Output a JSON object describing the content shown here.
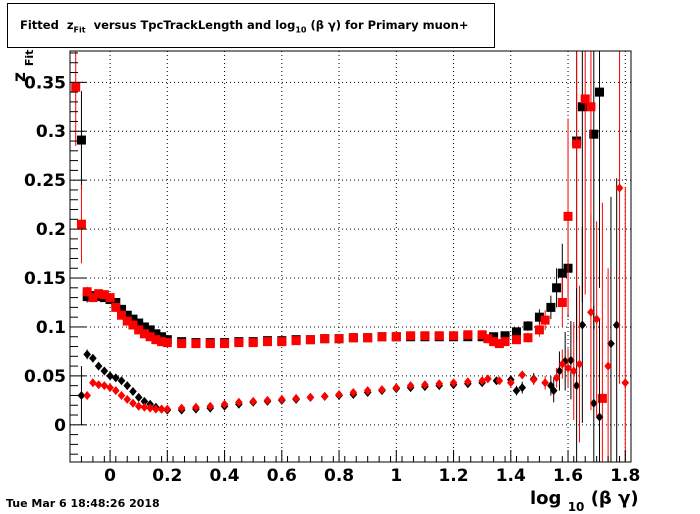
{
  "title": {
    "prefix": "Fitted",
    "z": "z",
    "z_sub": "Fit",
    "middle": "versus TpcTrackLength and log",
    "log_sub": "10",
    "suffix": "(β γ) for Primary muon+"
  },
  "timestamp": "Tue Mar  6 18:48:26 2018",
  "chart_data": {
    "type": "scatter",
    "title": "Fitted  zFit versus TpcTrackLength and log10 (β γ) for Primary muon+",
    "xlabel": {
      "main": "log",
      "sub": "10",
      "rest": "(β γ)"
    },
    "ylabel": {
      "main": "z",
      "sub": "Fit"
    },
    "xlim": [
      -0.14,
      1.82
    ],
    "ylim": [
      -0.038,
      0.382
    ],
    "grid": true,
    "x_ticks": [
      0,
      0.2,
      0.4,
      0.6,
      0.8,
      1,
      1.2,
      1.4,
      1.6,
      1.8
    ],
    "x_tick_labels": [
      "0",
      "0.2",
      "0.4",
      "0.6",
      "0.8",
      "1",
      "1.2",
      "1.4",
      "1.6",
      "1.8"
    ],
    "y_ticks": [
      0,
      0.05,
      0.1,
      0.15,
      0.2,
      0.25,
      0.3,
      0.35
    ],
    "y_tick_labels": [
      "0",
      "0.05",
      "0.1",
      "0.15",
      "0.2",
      "0.25",
      "0.3",
      "0.35"
    ],
    "series": [
      {
        "color": "#000000",
        "marker": "square",
        "points": [
          [
            -0.1,
            0.291,
            0.05
          ],
          [
            -0.08,
            0.131,
            0.006
          ],
          [
            -0.06,
            0.132,
            0.004
          ],
          [
            -0.04,
            0.131,
            0.004
          ],
          [
            -0.02,
            0.13,
            0.003
          ],
          [
            0.0,
            0.128,
            0.003
          ],
          [
            0.02,
            0.125,
            0.003
          ],
          [
            0.04,
            0.118,
            0.002
          ],
          [
            0.06,
            0.112,
            0.002
          ],
          [
            0.08,
            0.108,
            0.002
          ],
          [
            0.1,
            0.104,
            0.002
          ],
          [
            0.12,
            0.1,
            0.002
          ],
          [
            0.14,
            0.097,
            0.002
          ],
          [
            0.16,
            0.093,
            0.001
          ],
          [
            0.18,
            0.09,
            0.001
          ],
          [
            0.2,
            0.087,
            0.001
          ],
          [
            0.25,
            0.085,
            0.001
          ],
          [
            0.3,
            0.084,
            0.001
          ],
          [
            0.35,
            0.084,
            0.001
          ],
          [
            0.4,
            0.084,
            0.001
          ],
          [
            0.45,
            0.085,
            0.001
          ],
          [
            0.5,
            0.085,
            0.001
          ],
          [
            0.55,
            0.086,
            0.001
          ],
          [
            0.6,
            0.086,
            0.001
          ],
          [
            0.65,
            0.087,
            0.001
          ],
          [
            0.7,
            0.087,
            0.001
          ],
          [
            0.75,
            0.088,
            0.001
          ],
          [
            0.8,
            0.088,
            0.001
          ],
          [
            0.85,
            0.089,
            0.001
          ],
          [
            0.9,
            0.089,
            0.001
          ],
          [
            0.95,
            0.09,
            0.001
          ],
          [
            1.0,
            0.09,
            0.001
          ],
          [
            1.05,
            0.09,
            0.001
          ],
          [
            1.1,
            0.09,
            0.001
          ],
          [
            1.15,
            0.09,
            0.001
          ],
          [
            1.2,
            0.09,
            0.001
          ],
          [
            1.25,
            0.09,
            0.001
          ],
          [
            1.3,
            0.09,
            0.002
          ],
          [
            1.34,
            0.09,
            0.002
          ],
          [
            1.38,
            0.091,
            0.003
          ],
          [
            1.42,
            0.095,
            0.004
          ],
          [
            1.46,
            0.101,
            0.005
          ],
          [
            1.5,
            0.11,
            0.008
          ],
          [
            1.54,
            0.12,
            0.012
          ],
          [
            1.56,
            0.14,
            0.02
          ],
          [
            1.58,
            0.155,
            0.03
          ],
          [
            1.6,
            0.16,
            0.05
          ],
          [
            1.63,
            0.29,
            0.15
          ],
          [
            1.65,
            0.325,
            0.2
          ],
          [
            1.69,
            0.297,
            0.2
          ],
          [
            1.71,
            0.34,
            0.2
          ]
        ]
      },
      {
        "color": "#ff0000",
        "marker": "square",
        "points": [
          [
            -0.12,
            0.345,
            0.06
          ],
          [
            -0.1,
            0.205,
            0.04
          ],
          [
            -0.08,
            0.136,
            0.005
          ],
          [
            -0.06,
            0.13,
            0.004
          ],
          [
            -0.04,
            0.134,
            0.004
          ],
          [
            -0.02,
            0.133,
            0.003
          ],
          [
            0.0,
            0.13,
            0.003
          ],
          [
            0.02,
            0.12,
            0.003
          ],
          [
            0.04,
            0.112,
            0.002
          ],
          [
            0.06,
            0.106,
            0.002
          ],
          [
            0.08,
            0.102,
            0.002
          ],
          [
            0.1,
            0.097,
            0.002
          ],
          [
            0.12,
            0.093,
            0.002
          ],
          [
            0.14,
            0.09,
            0.001
          ],
          [
            0.16,
            0.087,
            0.001
          ],
          [
            0.18,
            0.085,
            0.001
          ],
          [
            0.2,
            0.084,
            0.001
          ],
          [
            0.25,
            0.083,
            0.001
          ],
          [
            0.3,
            0.083,
            0.001
          ],
          [
            0.35,
            0.083,
            0.001
          ],
          [
            0.4,
            0.083,
            0.001
          ],
          [
            0.45,
            0.084,
            0.001
          ],
          [
            0.5,
            0.084,
            0.001
          ],
          [
            0.55,
            0.085,
            0.001
          ],
          [
            0.6,
            0.085,
            0.001
          ],
          [
            0.65,
            0.086,
            0.001
          ],
          [
            0.7,
            0.087,
            0.001
          ],
          [
            0.75,
            0.088,
            0.001
          ],
          [
            0.8,
            0.088,
            0.001
          ],
          [
            0.85,
            0.089,
            0.001
          ],
          [
            0.9,
            0.089,
            0.001
          ],
          [
            0.95,
            0.09,
            0.001
          ],
          [
            1.0,
            0.09,
            0.001
          ],
          [
            1.05,
            0.091,
            0.001
          ],
          [
            1.1,
            0.091,
            0.001
          ],
          [
            1.15,
            0.091,
            0.001
          ],
          [
            1.2,
            0.091,
            0.001
          ],
          [
            1.25,
            0.092,
            0.001
          ],
          [
            1.3,
            0.092,
            0.002
          ],
          [
            1.32,
            0.088,
            0.002
          ],
          [
            1.34,
            0.085,
            0.002
          ],
          [
            1.36,
            0.083,
            0.003
          ],
          [
            1.38,
            0.085,
            0.003
          ],
          [
            1.42,
            0.087,
            0.004
          ],
          [
            1.46,
            0.089,
            0.005
          ],
          [
            1.5,
            0.097,
            0.007
          ],
          [
            1.52,
            0.107,
            0.01
          ],
          [
            1.58,
            0.125,
            0.025
          ],
          [
            1.6,
            0.213,
            0.1
          ],
          [
            1.63,
            0.287,
            0.2
          ],
          [
            1.66,
            0.333,
            0.2
          ],
          [
            1.68,
            0.325,
            0.2
          ],
          [
            1.72,
            0.027,
            0.2
          ]
        ]
      },
      {
        "color": "#000000",
        "marker": "diamond",
        "points": [
          [
            -0.1,
            0.03,
            0.03
          ],
          [
            -0.08,
            0.072,
            0.005
          ],
          [
            -0.06,
            0.068,
            0.004
          ],
          [
            -0.04,
            0.06,
            0.003
          ],
          [
            -0.02,
            0.055,
            0.003
          ],
          [
            0.0,
            0.05,
            0.003
          ],
          [
            0.02,
            0.048,
            0.002
          ],
          [
            0.04,
            0.045,
            0.002
          ],
          [
            0.06,
            0.04,
            0.002
          ],
          [
            0.08,
            0.034,
            0.002
          ],
          [
            0.1,
            0.028,
            0.002
          ],
          [
            0.12,
            0.024,
            0.001
          ],
          [
            0.14,
            0.021,
            0.001
          ],
          [
            0.16,
            0.018,
            0.001
          ],
          [
            0.18,
            0.016,
            0.001
          ],
          [
            0.2,
            0.015,
            0.001
          ],
          [
            0.25,
            0.015,
            0.001
          ],
          [
            0.3,
            0.016,
            0.001
          ],
          [
            0.35,
            0.017,
            0.001
          ],
          [
            0.4,
            0.019,
            0.001
          ],
          [
            0.45,
            0.021,
            0.001
          ],
          [
            0.5,
            0.023,
            0.001
          ],
          [
            0.55,
            0.024,
            0.001
          ],
          [
            0.6,
            0.025,
            0.001
          ],
          [
            0.65,
            0.026,
            0.001
          ],
          [
            0.7,
            0.028,
            0.001
          ],
          [
            0.75,
            0.029,
            0.001
          ],
          [
            0.8,
            0.03,
            0.001
          ],
          [
            0.85,
            0.031,
            0.001
          ],
          [
            0.9,
            0.033,
            0.001
          ],
          [
            0.95,
            0.035,
            0.001
          ],
          [
            1.0,
            0.037,
            0.001
          ],
          [
            1.05,
            0.038,
            0.001
          ],
          [
            1.1,
            0.039,
            0.001
          ],
          [
            1.15,
            0.04,
            0.001
          ],
          [
            1.2,
            0.041,
            0.001
          ],
          [
            1.25,
            0.042,
            0.001
          ],
          [
            1.3,
            0.043,
            0.002
          ],
          [
            1.35,
            0.045,
            0.002
          ],
          [
            1.4,
            0.046,
            0.003
          ],
          [
            1.42,
            0.035,
            0.005
          ],
          [
            1.44,
            0.038,
            0.006
          ],
          [
            1.48,
            0.047,
            0.006
          ],
          [
            1.54,
            0.04,
            0.01
          ],
          [
            1.55,
            0.035,
            0.012
          ],
          [
            1.57,
            0.055,
            0.02
          ],
          [
            1.59,
            0.065,
            0.03
          ],
          [
            1.61,
            0.066,
            0.04
          ],
          [
            1.63,
            0.04,
            0.1
          ],
          [
            1.65,
            0.102,
            0.1
          ],
          [
            1.69,
            0.022,
            0.1
          ],
          [
            1.71,
            0.008,
            0.1
          ],
          [
            1.75,
            0.083,
            0.15
          ],
          [
            1.77,
            0.102,
            0.15
          ]
        ]
      },
      {
        "color": "#ff0000",
        "marker": "diamond",
        "points": [
          [
            -0.08,
            0.03,
            0.004
          ],
          [
            -0.06,
            0.043,
            0.004
          ],
          [
            -0.04,
            0.041,
            0.003
          ],
          [
            -0.02,
            0.04,
            0.003
          ],
          [
            0.0,
            0.038,
            0.002
          ],
          [
            0.02,
            0.035,
            0.002
          ],
          [
            0.04,
            0.03,
            0.002
          ],
          [
            0.06,
            0.026,
            0.002
          ],
          [
            0.08,
            0.022,
            0.001
          ],
          [
            0.1,
            0.019,
            0.001
          ],
          [
            0.12,
            0.018,
            0.001
          ],
          [
            0.14,
            0.017,
            0.001
          ],
          [
            0.16,
            0.016,
            0.001
          ],
          [
            0.18,
            0.016,
            0.001
          ],
          [
            0.2,
            0.016,
            0.001
          ],
          [
            0.25,
            0.017,
            0.001
          ],
          [
            0.3,
            0.018,
            0.001
          ],
          [
            0.35,
            0.019,
            0.001
          ],
          [
            0.4,
            0.021,
            0.001
          ],
          [
            0.45,
            0.023,
            0.001
          ],
          [
            0.5,
            0.024,
            0.001
          ],
          [
            0.55,
            0.025,
            0.001
          ],
          [
            0.6,
            0.026,
            0.001
          ],
          [
            0.65,
            0.027,
            0.001
          ],
          [
            0.7,
            0.028,
            0.001
          ],
          [
            0.75,
            0.029,
            0.001
          ],
          [
            0.8,
            0.031,
            0.001
          ],
          [
            0.85,
            0.033,
            0.001
          ],
          [
            0.9,
            0.035,
            0.001
          ],
          [
            0.95,
            0.036,
            0.001
          ],
          [
            1.0,
            0.038,
            0.001
          ],
          [
            1.05,
            0.04,
            0.001
          ],
          [
            1.1,
            0.041,
            0.001
          ],
          [
            1.15,
            0.042,
            0.001
          ],
          [
            1.2,
            0.043,
            0.001
          ],
          [
            1.25,
            0.044,
            0.001
          ],
          [
            1.3,
            0.045,
            0.002
          ],
          [
            1.32,
            0.047,
            0.002
          ],
          [
            1.36,
            0.045,
            0.002
          ],
          [
            1.4,
            0.043,
            0.003
          ],
          [
            1.44,
            0.051,
            0.004
          ],
          [
            1.48,
            0.046,
            0.005
          ],
          [
            1.52,
            0.043,
            0.007
          ],
          [
            1.56,
            0.048,
            0.01
          ],
          [
            1.58,
            0.062,
            0.015
          ],
          [
            1.6,
            0.058,
            0.02
          ],
          [
            1.62,
            0.055,
            0.05
          ],
          [
            1.64,
            0.062,
            0.08
          ],
          [
            1.68,
            0.115,
            0.1
          ],
          [
            1.7,
            0.108,
            0.1
          ],
          [
            1.74,
            0.06,
            0.1
          ],
          [
            1.78,
            0.242,
            0.2
          ],
          [
            1.8,
            0.043,
            0.2
          ]
        ]
      }
    ]
  }
}
